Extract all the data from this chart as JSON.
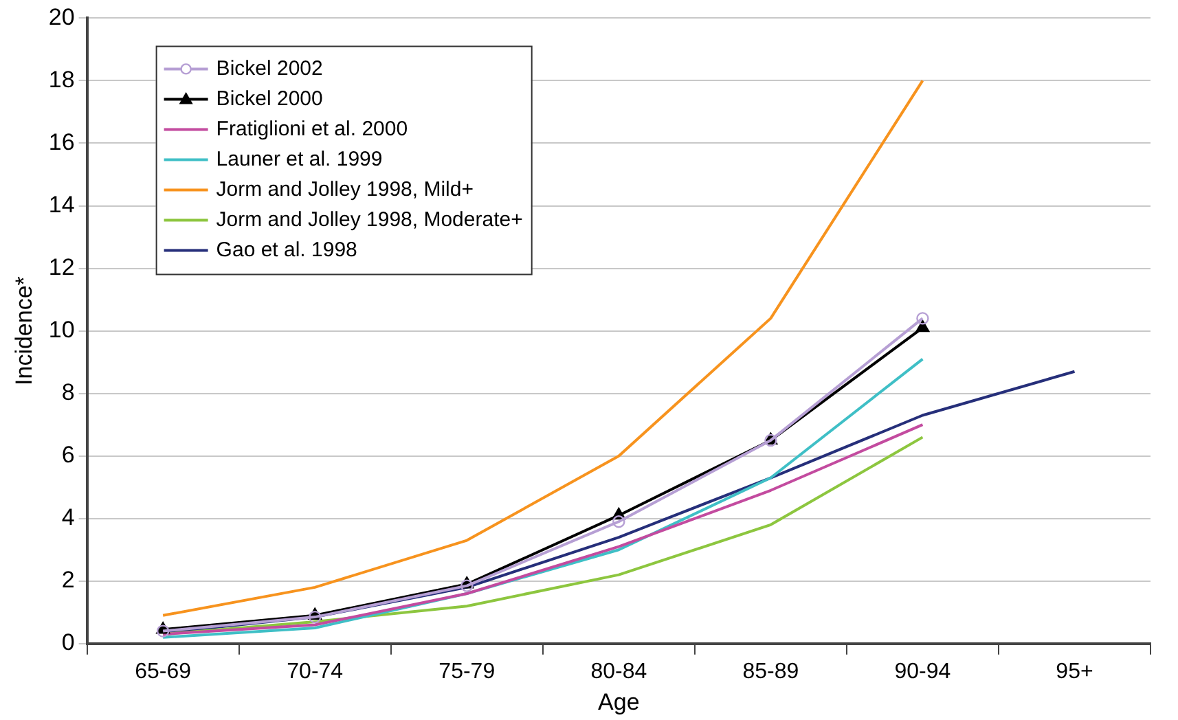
{
  "chart_data": {
    "type": "line",
    "xlabel": "Age",
    "ylabel": "Incidence*",
    "categories": [
      "65-69",
      "70-74",
      "75-79",
      "80-84",
      "85-89",
      "90-94",
      "95+"
    ],
    "ylim": [
      0,
      20
    ],
    "yticks": [
      0,
      2,
      4,
      6,
      8,
      10,
      12,
      14,
      16,
      18,
      20
    ],
    "grid": "y",
    "legend": "top left",
    "line_style": "solid",
    "series": [
      {
        "name": "Bickel 2002",
        "color": "#b69fd4",
        "marker": "circle",
        "values": [
          0.4,
          0.85,
          1.85,
          3.9,
          6.5,
          10.4,
          null
        ]
      },
      {
        "name": "Bickel 2000",
        "color": "#000000",
        "marker": "triangle",
        "values": [
          0.45,
          0.9,
          1.9,
          4.1,
          6.5,
          10.1,
          null
        ]
      },
      {
        "name": "Fratiglioni et al. 2000",
        "color": "#c34b9f",
        "marker": "none",
        "values": [
          0.3,
          0.6,
          1.6,
          3.1,
          4.9,
          7.0,
          null
        ]
      },
      {
        "name": "Launer et al. 1999",
        "color": "#3fbfc6",
        "marker": "none",
        "values": [
          0.2,
          0.5,
          1.6,
          3.0,
          5.3,
          9.1,
          null
        ]
      },
      {
        "name": "Jorm and Jolley 1998, Mild+",
        "color": "#f7931e",
        "marker": "none",
        "values": [
          0.9,
          1.8,
          3.3,
          6.0,
          10.4,
          18.0,
          null
        ]
      },
      {
        "name": "Jorm and Jolley 1998, Moderate+",
        "color": "#8dc63f",
        "marker": "none",
        "values": [
          0.3,
          0.7,
          1.2,
          2.2,
          3.8,
          6.6,
          null
        ]
      },
      {
        "name": "Gao et al. 1998",
        "color": "#262f7a",
        "marker": "none",
        "values": [
          0.35,
          0.85,
          1.8,
          3.4,
          5.3,
          7.3,
          8.7
        ]
      }
    ]
  }
}
